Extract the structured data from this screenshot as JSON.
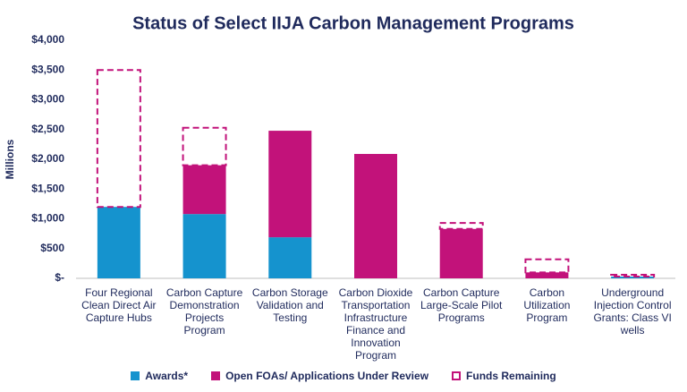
{
  "chart_data": {
    "type": "stacked_bar",
    "title": "Status of Select IIJA Carbon Management Programs",
    "y_label": "Millions",
    "categories": [
      "Four Regional Clean Direct Air Capture Hubs",
      "Carbon Capture Demonstration Projects Program",
      "Carbon Storage Validation and Testing",
      "Carbon Dioxide Transportation Infrastructure Finance and Innovation Program",
      "Carbon Capture Large-Scale Pilot Programs",
      "Carbon Utilization Program",
      "Underground Injection Control Grants: Class VI wells"
    ],
    "series": [
      {
        "name": "Awards*",
        "color": "#1593ce",
        "style": "solid",
        "values": [
          1200,
          1080,
          690,
          0,
          0,
          0,
          30
        ]
      },
      {
        "name": "Open FOAs/ Applications Under Review",
        "color": "#c2127a",
        "style": "solid",
        "values": [
          0,
          820,
          1790,
          2090,
          830,
          100,
          0
        ]
      },
      {
        "name": "Funds Remaining",
        "color": "#c2127a",
        "style": "dashed",
        "values": [
          2300,
          630,
          0,
          0,
          100,
          220,
          30
        ]
      }
    ],
    "ylim": [
      0,
      4000
    ],
    "yticks": [
      {
        "value": 0,
        "label": "$-"
      },
      {
        "value": 500,
        "label": "$500"
      },
      {
        "value": 1000,
        "label": "$1,000"
      },
      {
        "value": 1500,
        "label": "$1,500"
      },
      {
        "value": 2000,
        "label": "$2,000"
      },
      {
        "value": 2500,
        "label": "$2,500"
      },
      {
        "value": 3000,
        "label": "$3,000"
      },
      {
        "value": 3500,
        "label": "$3,500"
      },
      {
        "value": 4000,
        "label": "$4,000"
      }
    ],
    "grid": false
  }
}
